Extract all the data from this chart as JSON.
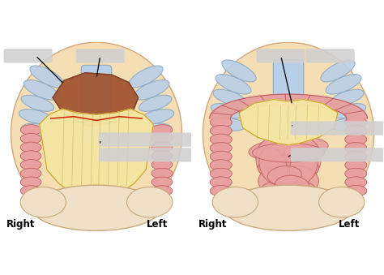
{
  "bg_color": "#ffffff",
  "skin_color": "#f5deb3",
  "skin_edge": "#d2a679",
  "rib_color": "#b8cfe8",
  "rib_edge": "#8aaac5",
  "liver_color": "#a0522d",
  "liver_edge": "#7a3b1e",
  "omentum_color": "#f5e6a3",
  "omentum_edge": "#c8a020",
  "omentum_stripe": "#c8b560",
  "vessel_color": "#cc2200",
  "colon_color": "#e8a0a0",
  "colon_edge": "#c06060",
  "pelvis_color": "#f0e0c8",
  "pelvis_edge": "#c8a879",
  "blur_color": "#d0d0d0",
  "label_color": "#000000",
  "label_fontsize": 8.5,
  "right_label": "Right",
  "left_label": "Left"
}
